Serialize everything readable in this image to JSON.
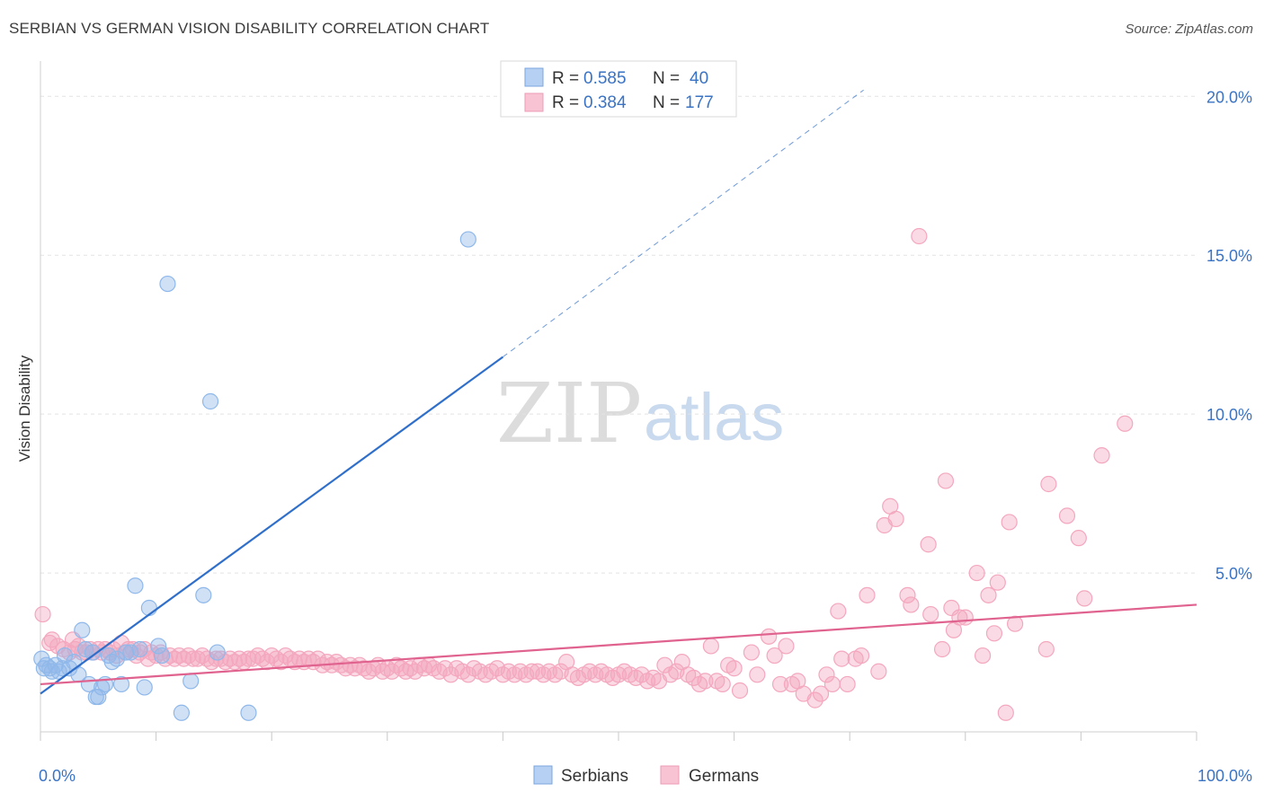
{
  "title": "SERBIAN VS GERMAN VISION DISABILITY CORRELATION CHART",
  "source": "Source: ZipAtlas.com",
  "watermark": {
    "part1": "ZIP",
    "part2": "atlas"
  },
  "chart_data": {
    "type": "scatter",
    "xlabel": "",
    "ylabel": "Vision Disability",
    "xlim": [
      0,
      100
    ],
    "ylim": [
      0,
      20.8
    ],
    "x_tick_labels": [
      {
        "value": 0,
        "label": "0.0%"
      },
      {
        "value": 100,
        "label": "100.0%"
      }
    ],
    "y_ticks": [
      {
        "value": 5,
        "label": "5.0%"
      },
      {
        "value": 10,
        "label": "10.0%"
      },
      {
        "value": 15,
        "label": "15.0%"
      },
      {
        "value": 20,
        "label": "20.0%"
      }
    ],
    "x_minor_ticks": [
      0,
      10,
      20,
      30,
      40,
      50,
      60,
      70,
      80,
      90,
      100
    ],
    "legend": {
      "entries": [
        {
          "r_label": "R =",
          "r_value": "0.585",
          "n_label": "N =",
          "n_value": "40"
        },
        {
          "r_label": "R =",
          "r_value": "0.384",
          "n_label": "N =",
          "n_value": "177"
        }
      ]
    },
    "series": [
      {
        "name": "Serbians",
        "color": "#8fb8ea",
        "line_color": "#2f6fca",
        "trend": {
          "x0": 0,
          "y0": 1.2,
          "x1": 40,
          "y1": 11.8,
          "dash_to_x": 71.2,
          "dash_to_y": 20.2
        },
        "points": [
          [
            0.1,
            2.3
          ],
          [
            0.3,
            2.0
          ],
          [
            0.5,
            2.1
          ],
          [
            0.8,
            2.0
          ],
          [
            1.0,
            1.9
          ],
          [
            1.3,
            2.1
          ],
          [
            1.6,
            1.9
          ],
          [
            1.9,
            2.0
          ],
          [
            2.1,
            2.4
          ],
          [
            2.5,
            2.0
          ],
          [
            2.9,
            2.2
          ],
          [
            3.3,
            1.8
          ],
          [
            3.6,
            3.2
          ],
          [
            3.9,
            2.6
          ],
          [
            4.2,
            1.5
          ],
          [
            4.5,
            2.5
          ],
          [
            4.8,
            1.1
          ],
          [
            5.0,
            1.1
          ],
          [
            5.3,
            1.4
          ],
          [
            5.6,
            1.5
          ],
          [
            5.9,
            2.4
          ],
          [
            6.2,
            2.2
          ],
          [
            6.6,
            2.3
          ],
          [
            7.0,
            1.5
          ],
          [
            7.4,
            2.5
          ],
          [
            7.8,
            2.5
          ],
          [
            8.2,
            4.6
          ],
          [
            8.6,
            2.6
          ],
          [
            9.0,
            1.4
          ],
          [
            9.4,
            3.9
          ],
          [
            10.2,
            2.7
          ],
          [
            10.5,
            2.4
          ],
          [
            11.0,
            14.1
          ],
          [
            12.2,
            0.6
          ],
          [
            13.0,
            1.6
          ],
          [
            14.1,
            4.3
          ],
          [
            14.7,
            10.4
          ],
          [
            15.3,
            2.5
          ],
          [
            18.0,
            0.6
          ],
          [
            37.0,
            15.5
          ]
        ]
      },
      {
        "name": "Germans",
        "color": "#f4a7be",
        "line_color": "#e0628e",
        "trend": {
          "x0": 0,
          "y0": 1.5,
          "x1": 100,
          "y1": 4.0
        },
        "points": [
          [
            0.2,
            3.7
          ],
          [
            0.8,
            2.8
          ],
          [
            1.0,
            2.9
          ],
          [
            1.5,
            2.7
          ],
          [
            2.0,
            2.6
          ],
          [
            2.5,
            2.5
          ],
          [
            2.8,
            2.9
          ],
          [
            3.0,
            2.6
          ],
          [
            3.3,
            2.7
          ],
          [
            3.6,
            2.5
          ],
          [
            4.0,
            2.5
          ],
          [
            4.3,
            2.6
          ],
          [
            4.6,
            2.5
          ],
          [
            5.0,
            2.6
          ],
          [
            5.3,
            2.5
          ],
          [
            5.6,
            2.6
          ],
          [
            6.0,
            2.5
          ],
          [
            6.3,
            2.6
          ],
          [
            6.6,
            2.4
          ],
          [
            7.0,
            2.8
          ],
          [
            7.3,
            2.5
          ],
          [
            7.6,
            2.6
          ],
          [
            8.0,
            2.6
          ],
          [
            8.3,
            2.4
          ],
          [
            8.6,
            2.5
          ],
          [
            9.0,
            2.6
          ],
          [
            9.3,
            2.3
          ],
          [
            9.6,
            2.5
          ],
          [
            10.0,
            2.4
          ],
          [
            10.4,
            2.5
          ],
          [
            10.8,
            2.3
          ],
          [
            11.2,
            2.4
          ],
          [
            11.6,
            2.3
          ],
          [
            12.0,
            2.4
          ],
          [
            12.4,
            2.3
          ],
          [
            12.8,
            2.4
          ],
          [
            13.2,
            2.3
          ],
          [
            13.6,
            2.3
          ],
          [
            14.0,
            2.4
          ],
          [
            14.4,
            2.3
          ],
          [
            14.8,
            2.2
          ],
          [
            15.2,
            2.3
          ],
          [
            15.6,
            2.3
          ],
          [
            16.0,
            2.2
          ],
          [
            16.4,
            2.3
          ],
          [
            16.8,
            2.2
          ],
          [
            17.2,
            2.3
          ],
          [
            17.6,
            2.2
          ],
          [
            18.0,
            2.3
          ],
          [
            18.4,
            2.3
          ],
          [
            18.8,
            2.4
          ],
          [
            19.2,
            2.3
          ],
          [
            19.6,
            2.2
          ],
          [
            20.0,
            2.4
          ],
          [
            20.4,
            2.3
          ],
          [
            20.8,
            2.2
          ],
          [
            21.2,
            2.4
          ],
          [
            21.6,
            2.3
          ],
          [
            22.0,
            2.2
          ],
          [
            22.4,
            2.3
          ],
          [
            22.8,
            2.2
          ],
          [
            23.2,
            2.3
          ],
          [
            23.6,
            2.2
          ],
          [
            24.0,
            2.3
          ],
          [
            24.4,
            2.1
          ],
          [
            24.8,
            2.2
          ],
          [
            25.2,
            2.1
          ],
          [
            25.6,
            2.2
          ],
          [
            26.0,
            2.1
          ],
          [
            26.4,
            2.0
          ],
          [
            26.8,
            2.1
          ],
          [
            27.2,
            2.0
          ],
          [
            27.6,
            2.1
          ],
          [
            28.0,
            2.0
          ],
          [
            28.4,
            1.9
          ],
          [
            28.8,
            2.0
          ],
          [
            29.2,
            2.1
          ],
          [
            29.6,
            1.9
          ],
          [
            30.0,
            2.0
          ],
          [
            30.4,
            1.9
          ],
          [
            30.8,
            2.1
          ],
          [
            31.2,
            2.0
          ],
          [
            31.6,
            1.9
          ],
          [
            32.0,
            2.0
          ],
          [
            32.4,
            1.9
          ],
          [
            32.8,
            2.1
          ],
          [
            33.2,
            2.0
          ],
          [
            33.6,
            2.1
          ],
          [
            34.0,
            2.0
          ],
          [
            34.5,
            1.9
          ],
          [
            35.0,
            2.0
          ],
          [
            35.5,
            1.8
          ],
          [
            36.0,
            2.0
          ],
          [
            36.5,
            1.9
          ],
          [
            37.0,
            1.8
          ],
          [
            37.5,
            2.0
          ],
          [
            38.0,
            1.9
          ],
          [
            38.5,
            1.8
          ],
          [
            39.0,
            1.9
          ],
          [
            39.5,
            2.0
          ],
          [
            40.0,
            1.8
          ],
          [
            40.5,
            1.9
          ],
          [
            41.0,
            1.8
          ],
          [
            41.5,
            1.9
          ],
          [
            42.0,
            1.8
          ],
          [
            42.5,
            1.9
          ],
          [
            43.0,
            1.9
          ],
          [
            43.5,
            1.8
          ],
          [
            44.0,
            1.9
          ],
          [
            44.5,
            1.8
          ],
          [
            45.0,
            1.9
          ],
          [
            45.5,
            2.2
          ],
          [
            46.0,
            1.8
          ],
          [
            46.5,
            1.7
          ],
          [
            47.0,
            1.8
          ],
          [
            47.5,
            1.9
          ],
          [
            48.0,
            1.8
          ],
          [
            48.5,
            1.9
          ],
          [
            49.0,
            1.8
          ],
          [
            49.5,
            1.7
          ],
          [
            50.0,
            1.8
          ],
          [
            50.5,
            1.9
          ],
          [
            51.0,
            1.8
          ],
          [
            51.5,
            1.7
          ],
          [
            52.0,
            1.8
          ],
          [
            52.5,
            1.6
          ],
          [
            53.0,
            1.7
          ],
          [
            53.5,
            1.6
          ],
          [
            54.0,
            2.1
          ],
          [
            54.5,
            1.8
          ],
          [
            55.0,
            1.9
          ],
          [
            55.5,
            2.2
          ],
          [
            56.0,
            1.8
          ],
          [
            56.5,
            1.7
          ],
          [
            57.0,
            1.5
          ],
          [
            57.5,
            1.6
          ],
          [
            58.0,
            2.7
          ],
          [
            58.5,
            1.6
          ],
          [
            59.0,
            1.5
          ],
          [
            59.5,
            2.1
          ],
          [
            60.0,
            2.0
          ],
          [
            60.5,
            1.3
          ],
          [
            61.5,
            2.5
          ],
          [
            62.0,
            1.8
          ],
          [
            63.0,
            3.0
          ],
          [
            63.5,
            2.4
          ],
          [
            64.0,
            1.5
          ],
          [
            64.5,
            2.7
          ],
          [
            65.0,
            1.5
          ],
          [
            65.5,
            1.6
          ],
          [
            66.0,
            1.2
          ],
          [
            67.0,
            1.0
          ],
          [
            67.5,
            1.2
          ],
          [
            68.0,
            1.8
          ],
          [
            68.5,
            1.5
          ],
          [
            69.0,
            3.8
          ],
          [
            69.3,
            2.3
          ],
          [
            69.8,
            1.5
          ],
          [
            70.5,
            2.3
          ],
          [
            71.0,
            2.4
          ],
          [
            71.5,
            4.3
          ],
          [
            72.5,
            1.9
          ],
          [
            73.0,
            6.5
          ],
          [
            73.5,
            7.1
          ],
          [
            74.0,
            6.7
          ],
          [
            75.0,
            4.3
          ],
          [
            75.3,
            4.0
          ],
          [
            76.0,
            15.6
          ],
          [
            76.8,
            5.9
          ],
          [
            77.0,
            3.7
          ],
          [
            78.0,
            2.6
          ],
          [
            78.3,
            7.9
          ],
          [
            78.8,
            3.9
          ],
          [
            79.0,
            3.2
          ],
          [
            79.5,
            3.6
          ],
          [
            80.0,
            3.6
          ],
          [
            81.0,
            5.0
          ],
          [
            81.5,
            2.4
          ],
          [
            82.0,
            4.3
          ],
          [
            82.5,
            3.1
          ],
          [
            82.8,
            4.7
          ],
          [
            83.5,
            0.6
          ],
          [
            83.8,
            6.6
          ],
          [
            84.3,
            3.4
          ],
          [
            87.0,
            2.6
          ],
          [
            87.2,
            7.8
          ],
          [
            88.8,
            6.8
          ],
          [
            89.8,
            6.1
          ],
          [
            90.3,
            4.2
          ],
          [
            91.8,
            8.7
          ],
          [
            93.8,
            9.7
          ]
        ]
      }
    ]
  }
}
